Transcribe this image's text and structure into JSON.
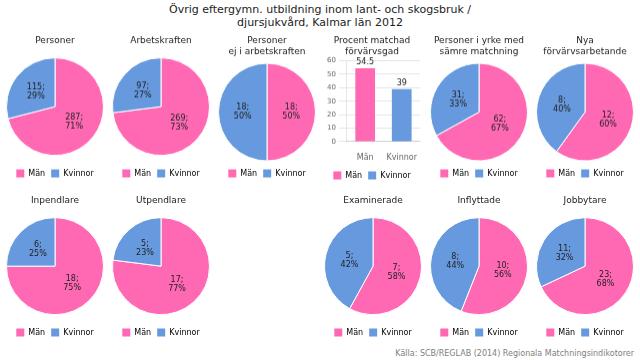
{
  "title": "Övrig eftergymn. utbildning inom lant- och skogsbruk /\ndjursjukvård, Kalmar län 2012",
  "annotations": [
    "Källa: SCB/REGLAB (2014)  Regionala Matchningsindikotorer"
  ],
  "chart_data": [
    {
      "type": "pie",
      "title": "Personer",
      "categories": [
        "Män",
        "Kvinnor"
      ],
      "values": [
        71,
        29
      ],
      "value_labels": [
        "287;\n71%",
        "115;\n29%"
      ],
      "colors": [
        "#FF69B4",
        "#6699DD"
      ],
      "data_labels": true,
      "legend": "bottom"
    },
    {
      "type": "pie",
      "title": "Arbetskraften",
      "categories": [
        "Män",
        "Kvinnor"
      ],
      "values": [
        73,
        27
      ],
      "value_labels": [
        "269;\n73%",
        "97;\n27%"
      ],
      "colors": [
        "#FF69B4",
        "#6699DD"
      ],
      "data_labels": true,
      "legend": "bottom"
    },
    {
      "type": "pie",
      "title": "Personer\nej i arbetskraften",
      "categories": [
        "Män",
        "Kvinnor"
      ],
      "values": [
        50,
        50
      ],
      "value_labels": [
        "18;\n50%",
        "18;\n50%"
      ],
      "colors": [
        "#FF69B4",
        "#6699DD"
      ],
      "data_labels": true,
      "legend": "bottom"
    },
    {
      "type": "bar",
      "title": "Procent matchad\nförvärvsgad",
      "categories": [
        "Män",
        "Kvinnor"
      ],
      "values": [
        54.5,
        39
      ],
      "colors": [
        "#FF69B4",
        "#6699DD"
      ],
      "ylim": [
        0,
        60
      ],
      "yticks": [
        0,
        10,
        20,
        30,
        40,
        50,
        60
      ],
      "grid": true,
      "data_labels": true,
      "legend": "bottom"
    },
    {
      "type": "pie",
      "title": "Personer i yrke med\nsämre matchning",
      "categories": [
        "Män",
        "Kvinnor"
      ],
      "values": [
        67,
        33
      ],
      "value_labels": [
        "62;\n67%",
        "31;\n33%"
      ],
      "colors": [
        "#FF69B4",
        "#6699DD"
      ],
      "data_labels": true,
      "legend": "bottom"
    },
    {
      "type": "pie",
      "title": "Nya\nförvärvsarbetande",
      "categories": [
        "Män",
        "Kvinnor"
      ],
      "values": [
        60,
        40
      ],
      "value_labels": [
        "12;\n60%",
        "8;\n40%"
      ],
      "colors": [
        "#FF69B4",
        "#6699DD"
      ],
      "data_labels": true,
      "legend": "bottom"
    },
    {
      "type": "pie",
      "title": "Inpendlare",
      "categories": [
        "Män",
        "Kvinnor"
      ],
      "values": [
        75,
        25
      ],
      "value_labels": [
        "18;\n75%",
        "6;\n25%"
      ],
      "colors": [
        "#FF69B4",
        "#6699DD"
      ],
      "data_labels": true,
      "legend": "bottom"
    },
    {
      "type": "pie",
      "title": "Utpendlare",
      "categories": [
        "Män",
        "Kvinnor"
      ],
      "values": [
        77,
        23
      ],
      "value_labels": [
        "17;\n77%",
        "5;\n23%"
      ],
      "colors": [
        "#FF69B4",
        "#6699DD"
      ],
      "data_labels": true,
      "legend": "bottom"
    },
    {
      "type": "pie",
      "title": "Examinerade",
      "categories": [
        "Män",
        "Kvinnor"
      ],
      "values": [
        58,
        42
      ],
      "value_labels": [
        "7;\n58%",
        "5;\n42%"
      ],
      "colors": [
        "#FF69B4",
        "#6699DD"
      ],
      "data_labels": true,
      "legend": "bottom"
    },
    {
      "type": "pie",
      "title": "Inflyttade",
      "categories": [
        "Män",
        "Kvinnor"
      ],
      "values": [
        56,
        44
      ],
      "value_labels": [
        "10;\n56%",
        "8;\n44%"
      ],
      "colors": [
        "#FF69B4",
        "#6699DD"
      ],
      "data_labels": true,
      "legend": "bottom"
    },
    {
      "type": "pie",
      "title": "Jobbytare",
      "categories": [
        "Män",
        "Kvinnor"
      ],
      "values": [
        68,
        32
      ],
      "value_labels": [
        "23;\n68%",
        "11;\n32%"
      ],
      "colors": [
        "#FF69B4",
        "#6699DD"
      ],
      "data_labels": true,
      "legend": "bottom"
    }
  ]
}
